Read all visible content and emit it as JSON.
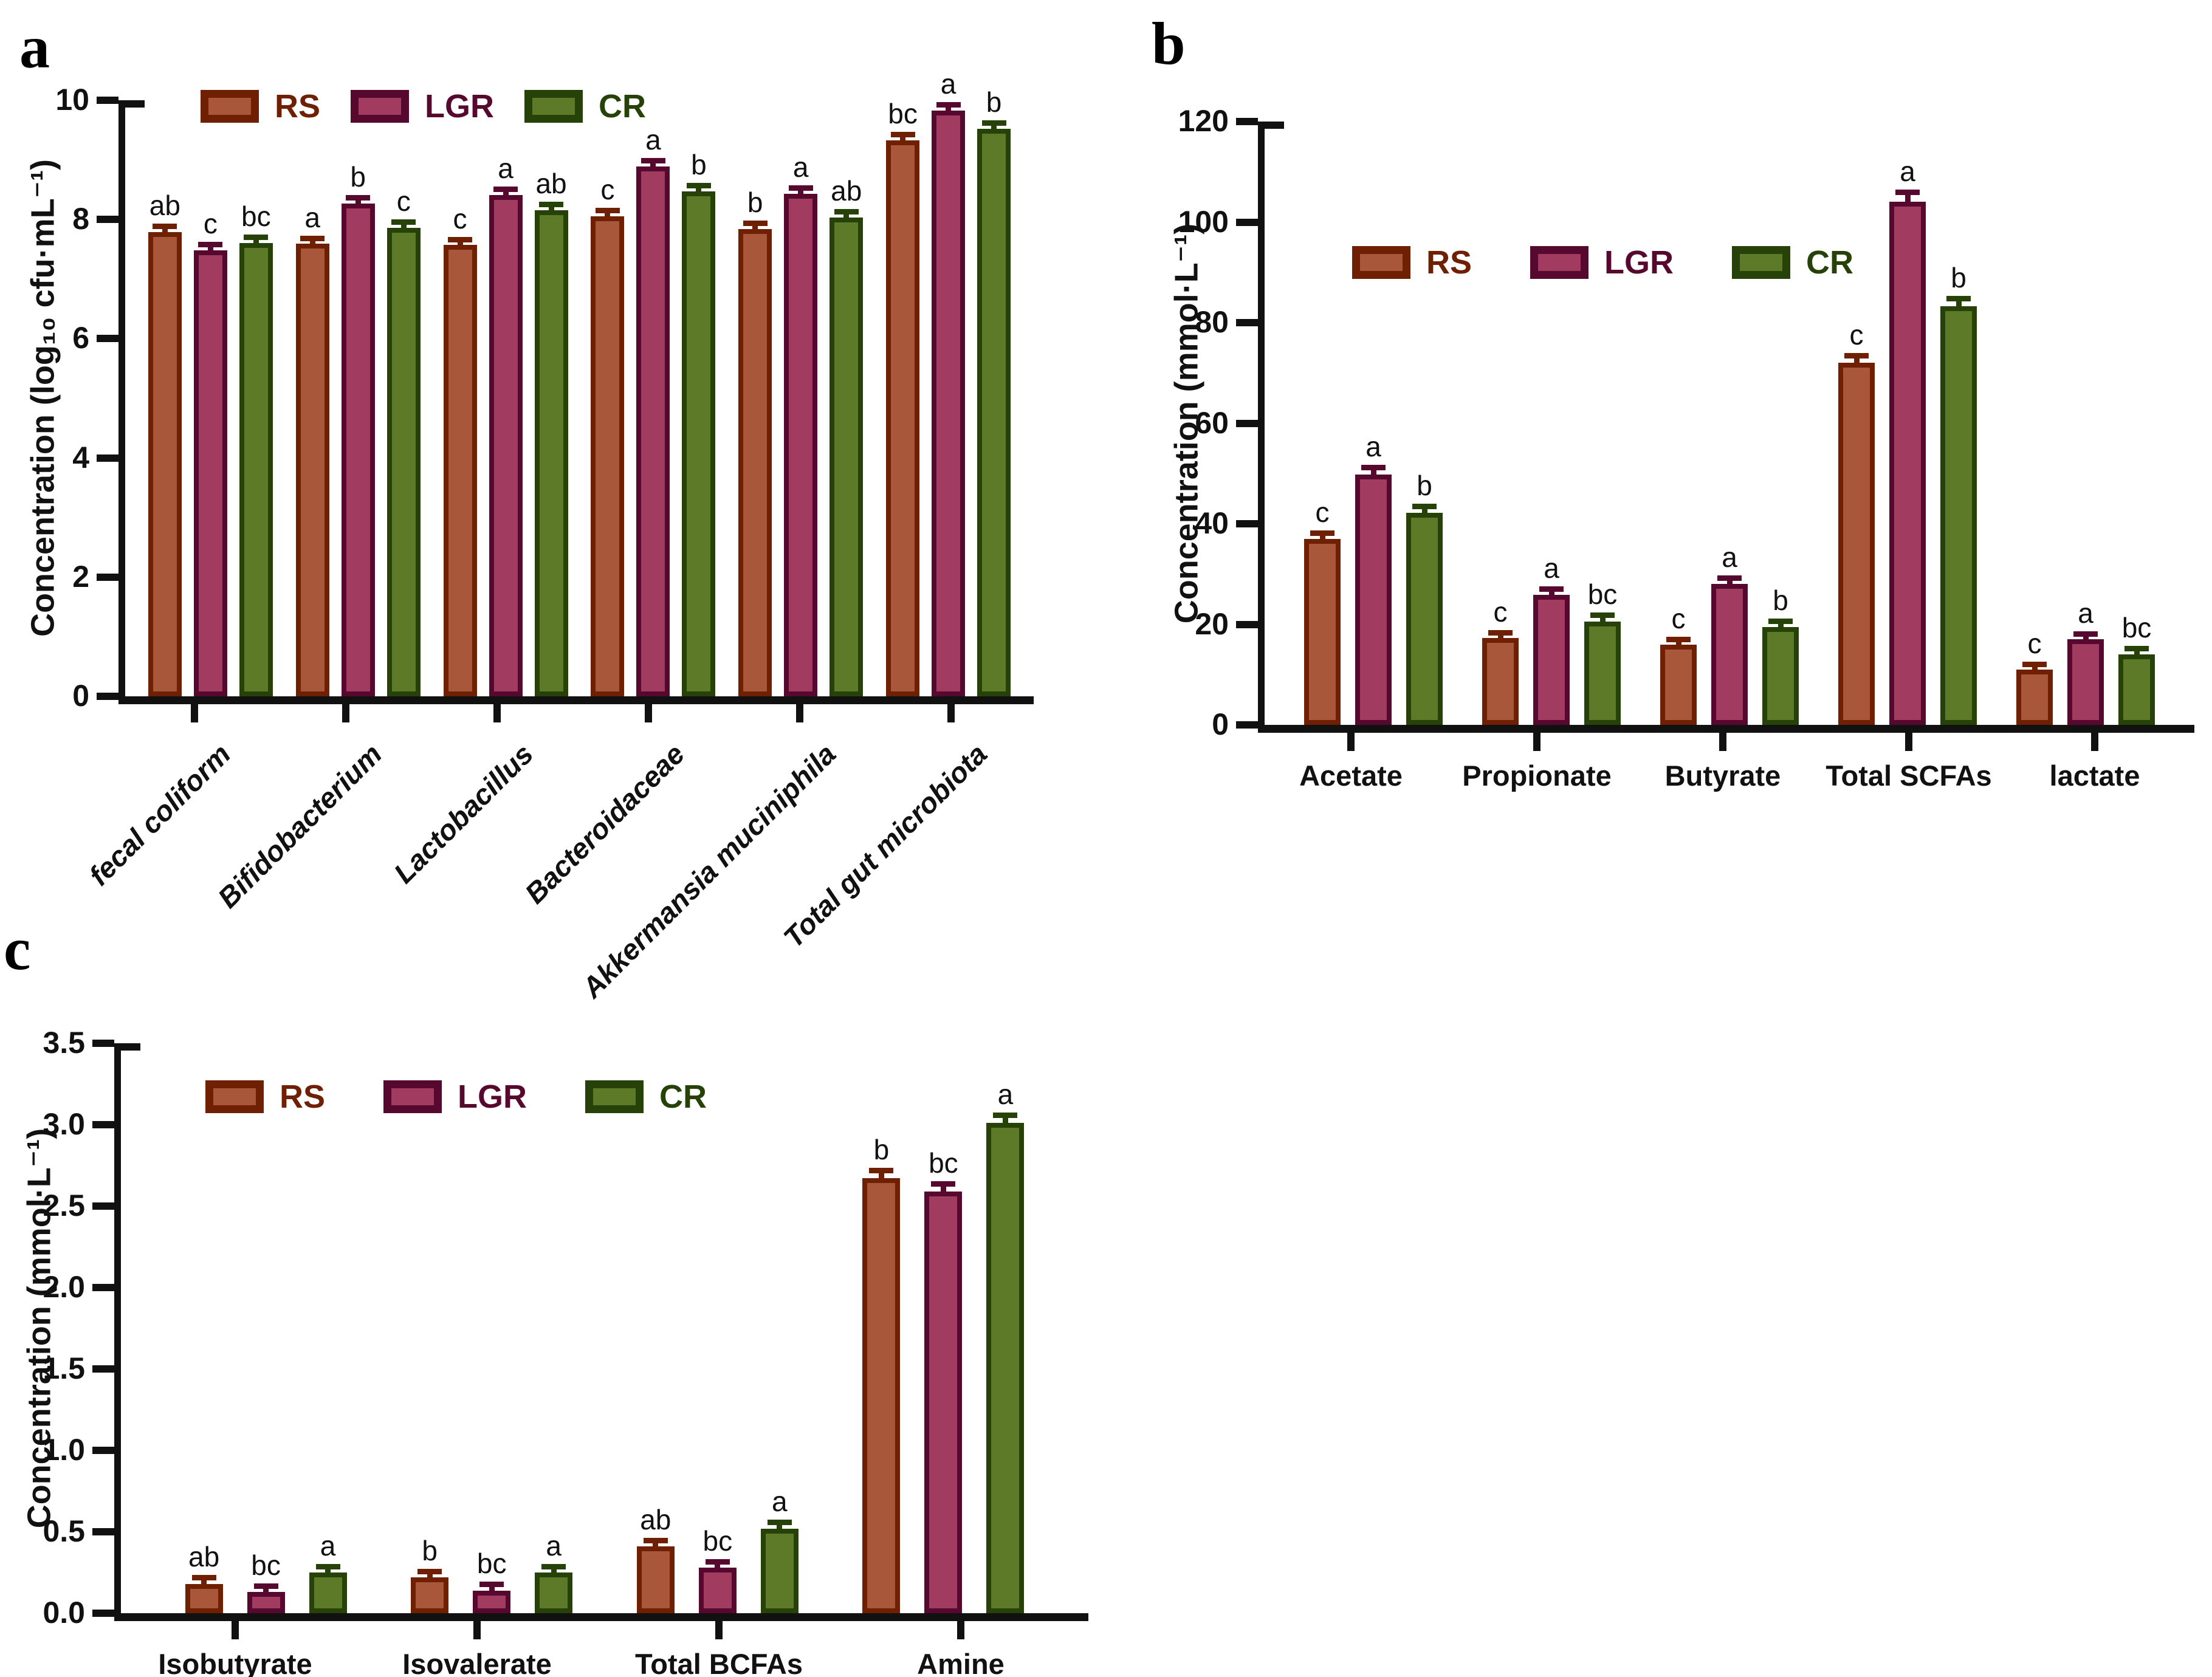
{
  "figure": {
    "background": "#ffffff"
  },
  "panels": [
    {
      "letter": "a"
    },
    {
      "letter": "b"
    },
    {
      "letter": "c"
    }
  ],
  "series_colors": {
    "RS": {
      "fill": "#A8573A",
      "dark": "#6F2003"
    },
    "LGR": {
      "fill": "#A13B60",
      "dark": "#57082F"
    },
    "CR": {
      "fill": "#5D7A28",
      "dark": "#264208"
    }
  },
  "chart_data": [
    {
      "panel": "a",
      "type": "bar",
      "ylabel": "Concentration (log₁₀ cfu·mL⁻¹)",
      "ylim": [
        0,
        10
      ],
      "ytick_step": 2,
      "ytick_decimals": 0,
      "grid": false,
      "legend_position": "top-inside",
      "legend": [
        "RS",
        "LGR",
        "CR"
      ],
      "categories": [
        "fecal coliform",
        "Bifidobacterium",
        "Lactobacillus",
        "Bacteroidaceae",
        "Akkermansia muciniphila",
        "Total gut microbiota"
      ],
      "categories_style": "italic-rotated-45",
      "series": [
        {
          "name": "RS",
          "values": [
            7.79,
            7.59,
            7.57,
            8.05,
            7.84,
            9.33
          ],
          "letters": [
            "ab",
            "a",
            "c",
            "c",
            "b",
            "bc"
          ],
          "errors": [
            0.05,
            0.05,
            0.05,
            0.05,
            0.05,
            0.05
          ]
        },
        {
          "name": "LGR",
          "values": [
            7.48,
            8.27,
            8.41,
            8.89,
            8.43,
            9.83
          ],
          "letters": [
            "c",
            "b",
            "a",
            "a",
            "a",
            "a"
          ],
          "errors": [
            0.05,
            0.05,
            0.05,
            0.05,
            0.05,
            0.05
          ]
        },
        {
          "name": "CR",
          "values": [
            7.61,
            7.86,
            8.16,
            8.47,
            8.03,
            9.52
          ],
          "letters": [
            "bc",
            "c",
            "ab",
            "b",
            "ab",
            "b"
          ],
          "errors": [
            0.05,
            0.05,
            0.05,
            0.05,
            0.05,
            0.05
          ]
        }
      ]
    },
    {
      "panel": "b",
      "type": "bar",
      "ylabel": "Concentration (mmol·L⁻¹)",
      "ylim": [
        0,
        120
      ],
      "ytick_step": 20,
      "ytick_decimals": 0,
      "grid": false,
      "legend_position": "top-inside",
      "legend": [
        "RS",
        "LGR",
        "CR"
      ],
      "categories": [
        "Acetate",
        "Propionate",
        "Butyrate",
        "Total SCFAs",
        "lactate"
      ],
      "categories_style": "horizontal",
      "series": [
        {
          "name": "RS",
          "values": [
            37,
            17.3,
            16,
            72,
            11
          ],
          "letters": [
            "c",
            "c",
            "c",
            "c",
            "c"
          ],
          "errors": [
            0.6,
            0.5,
            0.5,
            0.9,
            0.5
          ]
        },
        {
          "name": "LGR",
          "values": [
            49.8,
            25.9,
            28,
            104,
            17
          ],
          "letters": [
            "a",
            "a",
            "a",
            "a",
            "a"
          ],
          "errors": [
            0.9,
            0.6,
            0.6,
            1.4,
            0.5
          ]
        },
        {
          "name": "CR",
          "values": [
            42.2,
            20.6,
            19.5,
            83.3,
            14
          ],
          "letters": [
            "b",
            "bc",
            "b",
            "b",
            "bc"
          ],
          "errors": [
            0.7,
            0.7,
            0.6,
            0.9,
            0.6
          ]
        }
      ]
    },
    {
      "panel": "c",
      "type": "bar",
      "ylabel": "Concentration (mmol·L⁻¹)",
      "ylim": [
        0,
        3.5
      ],
      "ytick_step": 0.5,
      "ytick_decimals": 1,
      "grid": false,
      "legend_position": "top-inside",
      "legend": [
        "RS",
        "LGR",
        "CR"
      ],
      "categories": [
        "Isobutyrate",
        "Isovalerate",
        "Total BCFAs",
        "Amine"
      ],
      "categories_style": "horizontal",
      "series": [
        {
          "name": "RS",
          "values": [
            0.18,
            0.22,
            0.41,
            2.67
          ],
          "letters": [
            "ab",
            "b",
            "ab",
            "b"
          ],
          "errors": [
            0.02,
            0.02,
            0.02,
            0.03
          ]
        },
        {
          "name": "LGR",
          "values": [
            0.13,
            0.14,
            0.28,
            2.59
          ],
          "letters": [
            "bc",
            "bc",
            "bc",
            "bc"
          ],
          "errors": [
            0.02,
            0.02,
            0.02,
            0.03
          ]
        },
        {
          "name": "CR",
          "values": [
            0.25,
            0.25,
            0.52,
            3.01
          ],
          "letters": [
            "a",
            "a",
            "a",
            "a"
          ],
          "errors": [
            0.02,
            0.02,
            0.02,
            0.03
          ]
        }
      ]
    }
  ]
}
